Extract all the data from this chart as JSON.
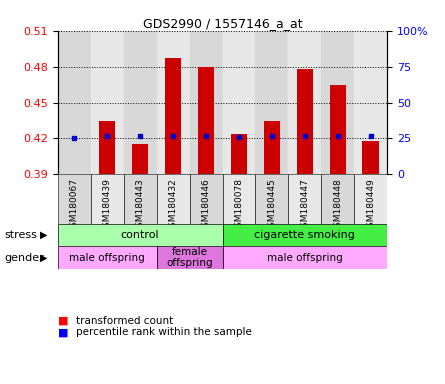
{
  "title": "GDS2990 / 1557146_a_at",
  "samples": [
    "GSM180067",
    "GSM180439",
    "GSM180443",
    "GSM180432",
    "GSM180446",
    "GSM180078",
    "GSM180445",
    "GSM180447",
    "GSM180448",
    "GSM180449"
  ],
  "transformed_count": [
    0.39,
    0.435,
    0.415,
    0.487,
    0.48,
    0.424,
    0.435,
    0.478,
    0.465,
    0.418
  ],
  "percentile_rank": [
    25,
    27,
    27,
    27,
    27,
    26,
    27,
    27,
    27,
    27
  ],
  "ylim_left": [
    0.39,
    0.51
  ],
  "ylim_right": [
    0,
    100
  ],
  "yticks_left": [
    0.39,
    0.42,
    0.45,
    0.48,
    0.51
  ],
  "yticks_right": [
    0,
    25,
    50,
    75,
    100
  ],
  "bar_color": "#cc0000",
  "dot_color": "#0000cc",
  "col_bg_odd": "#d8d8d8",
  "col_bg_even": "#e8e8e8",
  "stress_groups": [
    {
      "label": "control",
      "start": 0,
      "end": 5,
      "color": "#aaffaa"
    },
    {
      "label": "cigarette smoking",
      "start": 5,
      "end": 10,
      "color": "#44ee44"
    }
  ],
  "gender_groups": [
    {
      "label": "male offspring",
      "start": 0,
      "end": 3,
      "color": "#ffaaff"
    },
    {
      "label": "female\noffspring",
      "start": 3,
      "end": 5,
      "color": "#dd77dd"
    },
    {
      "label": "male offspring",
      "start": 5,
      "end": 10,
      "color": "#ffaaff"
    }
  ],
  "bar_width": 0.5
}
